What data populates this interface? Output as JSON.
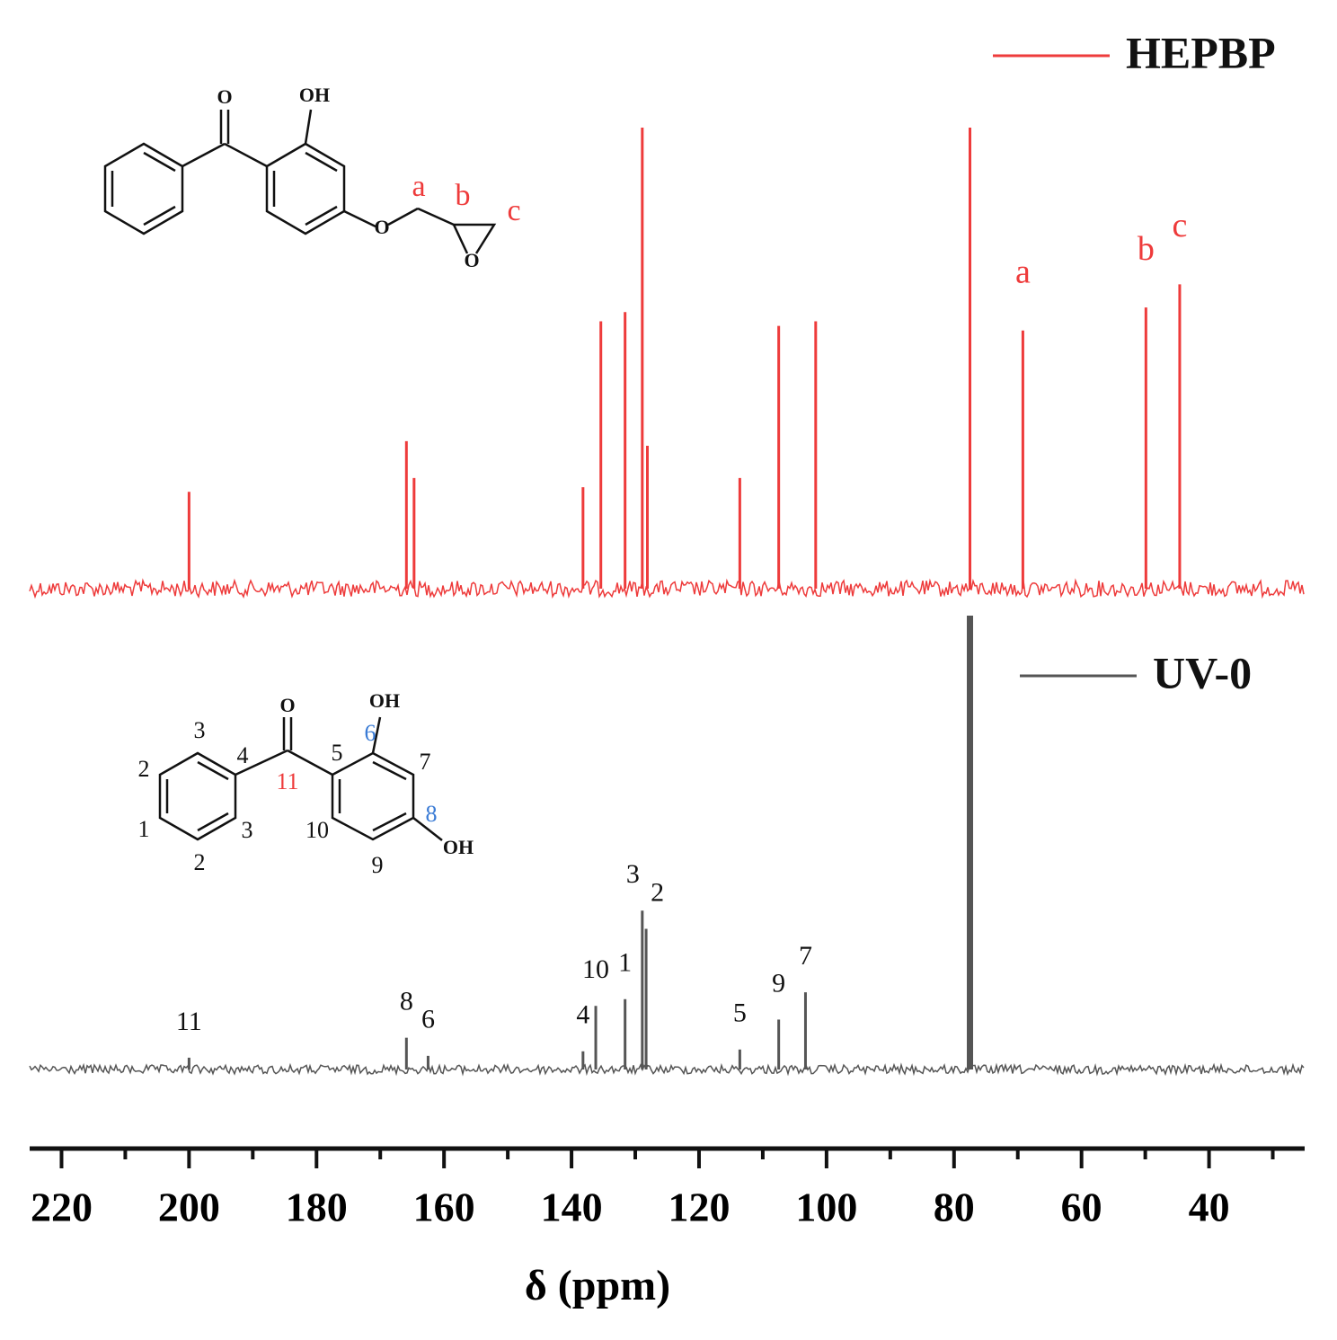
{
  "chart_data": {
    "type": "spectrum",
    "xlabel": "δ (ppm)",
    "xlim": [
      225,
      25
    ],
    "xticks": [
      220,
      200,
      180,
      160,
      140,
      120,
      100,
      80,
      60,
      40
    ],
    "xminorticks": [
      210,
      190,
      170,
      150,
      130,
      110,
      90,
      70,
      50,
      30
    ],
    "series": [
      {
        "name": "HEPBP",
        "color": "#ee3b3b",
        "label_color": "#ee3b3b",
        "x": [
          200.0,
          165.9,
          164.7,
          138.2,
          135.4,
          131.6,
          128.9,
          128.1,
          113.6,
          107.5,
          101.7,
          77.5,
          69.2,
          49.9,
          44.6
        ],
        "values": [
          21,
          32,
          24,
          22,
          58,
          60,
          100,
          31,
          24,
          57,
          58,
          100,
          56,
          61,
          66
        ],
        "peak_labels": [
          null,
          null,
          null,
          null,
          null,
          null,
          null,
          null,
          null,
          null,
          null,
          null,
          "a",
          "b",
          "c"
        ]
      },
      {
        "name": "UV-0",
        "color": "#555555",
        "label_color": "#111111",
        "x": [
          200.0,
          165.9,
          162.5,
          138.2,
          136.2,
          131.6,
          128.9,
          128.3,
          113.6,
          107.5,
          103.3,
          77.5
        ],
        "values": [
          2.6,
          7,
          3,
          4,
          14,
          15.5,
          35,
          31,
          4.4,
          11,
          17,
          100
        ],
        "peak_labels": [
          "11",
          "8",
          "6",
          "4",
          "10",
          "1",
          "3",
          "2",
          "5",
          "9",
          "7",
          null
        ]
      }
    ],
    "ylim": [
      0,
      100
    ],
    "structures": [
      {
        "labels": [
          "O",
          "OH",
          "O",
          "O",
          "a",
          "b",
          "c"
        ]
      },
      {
        "labels": [
          "O",
          "OH",
          "OH",
          "1",
          "2",
          "2",
          "3",
          "3",
          "4",
          "5",
          "6",
          "7",
          "8",
          "9",
          "10",
          "11"
        ]
      }
    ]
  }
}
